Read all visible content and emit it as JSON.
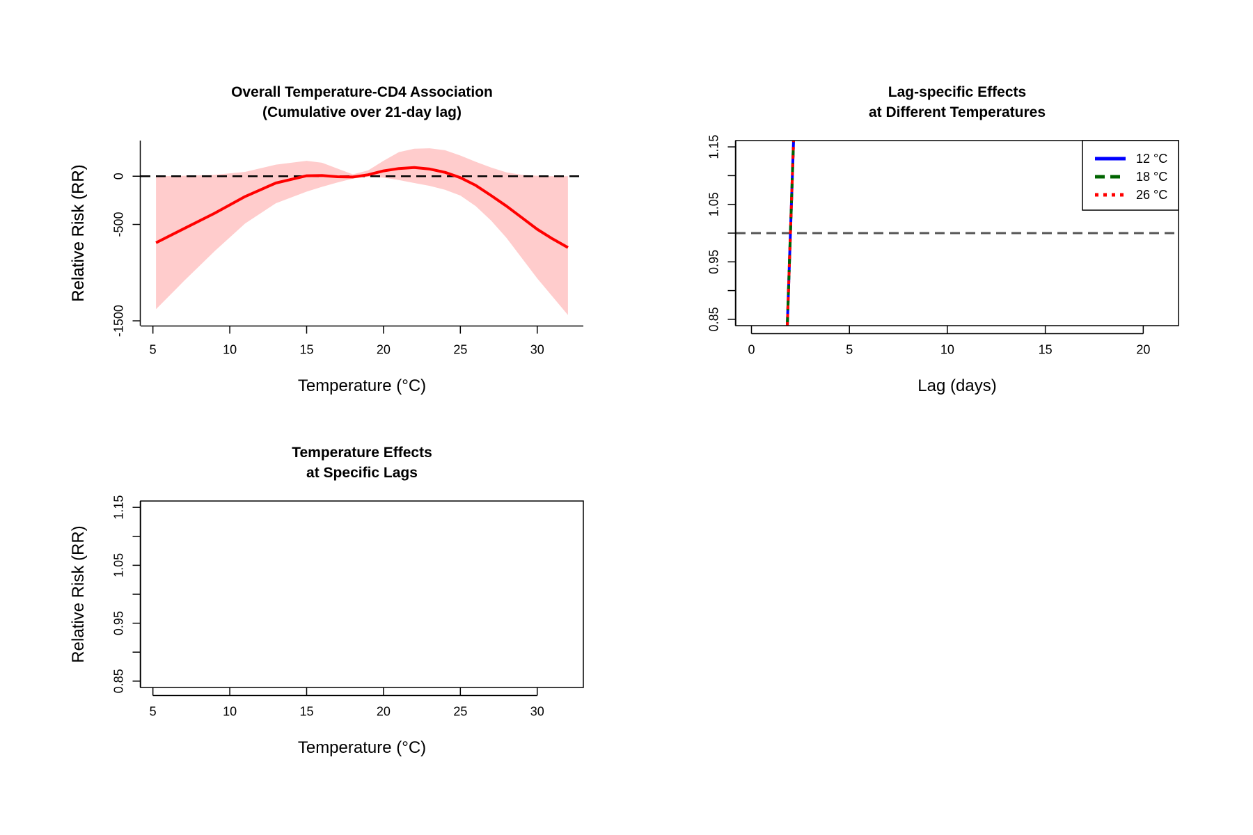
{
  "chart_data": [
    {
      "type": "line",
      "title": "Overall Temperature-CD4 Association",
      "subtitle": "(Cumulative over 21-day lag)",
      "xlabel": "Temperature (°C)",
      "ylabel": "Relative Risk (RR)",
      "xlim": [
        4.2,
        33.0
      ],
      "ylim": [
        -1550,
        370
      ],
      "x_ticks": [
        5,
        10,
        15,
        20,
        25,
        30
      ],
      "x_tick_labels": [
        "5",
        "10",
        "15",
        "20",
        "25",
        "30"
      ],
      "y_ticks": [
        -1500,
        -500,
        0
      ],
      "y_tick_labels": [
        "-1500",
        "-500",
        "0"
      ],
      "reference_line": {
        "y": 0,
        "style": "dashed"
      },
      "series": [
        {
          "x": [
            5.2,
            7,
            9,
            11,
            13,
            15,
            16,
            17,
            18,
            19,
            20,
            21,
            22,
            23,
            24,
            25,
            26,
            27,
            28,
            29,
            30,
            31,
            32
          ],
          "y": [
            -690,
            -545,
            -385,
            -210,
            -70,
            5,
            8,
            -5,
            -8,
            15,
            55,
            80,
            90,
            75,
            40,
            -15,
            -95,
            -200,
            -310,
            -430,
            -550,
            -650,
            -740
          ],
          "lower": [
            -1380,
            -1090,
            -780,
            -490,
            -280,
            -160,
            -110,
            -65,
            -25,
            -5,
            -15,
            -40,
            -70,
            -100,
            -140,
            -200,
            -310,
            -460,
            -640,
            -850,
            -1060,
            -1250,
            -1440
          ],
          "upper": [
            0,
            5,
            15,
            45,
            120,
            160,
            140,
            80,
            20,
            60,
            160,
            250,
            285,
            290,
            270,
            215,
            150,
            90,
            40,
            15,
            5,
            0,
            0
          ]
        }
      ],
      "colors": {
        "line": "#ff0000",
        "band": "#ffcccc",
        "reference": "#000000"
      }
    },
    {
      "type": "line",
      "title": "Lag-specific Effects",
      "subtitle": "at Different Temperatures",
      "xlabel": "Lag (days)",
      "ylabel": "Relative Risk (RR)",
      "xlim": [
        -0.8,
        21.8
      ],
      "ylim": [
        0.839,
        1.161
      ],
      "x_ticks": [
        0,
        5,
        10,
        15,
        20
      ],
      "x_tick_labels": [
        "0",
        "5",
        "10",
        "15",
        "20"
      ],
      "y_ticks": [
        0.85,
        0.9,
        0.95,
        1.0,
        1.05,
        1.1,
        1.15
      ],
      "y_tick_labels": [
        "0.85",
        "",
        "0.95",
        "",
        "1.05",
        "",
        "1.15"
      ],
      "reference_line": {
        "y": 1.0,
        "style": "dashed"
      },
      "legend": {
        "placement": "top-right",
        "entries": [
          "12 °C",
          "18 °C",
          "26 °C"
        ]
      },
      "series": [
        {
          "name": "12 °C",
          "x": [
            1.83,
            2.15
          ],
          "y": [
            0.839,
            1.161
          ],
          "color": "#0000ff",
          "style": "solid"
        },
        {
          "name": "18 °C",
          "x": [
            1.83,
            2.15
          ],
          "y": [
            0.839,
            1.161
          ],
          "color": "#006400",
          "style": "dashed"
        },
        {
          "name": "26 °C",
          "x": [
            1.83,
            2.15
          ],
          "y": [
            0.839,
            1.161
          ],
          "color": "#ff0000",
          "style": "dotted"
        }
      ],
      "colors": {
        "reference": "#555555"
      }
    },
    {
      "type": "line",
      "title": "Temperature Effects",
      "subtitle": "at Specific Lags",
      "xlabel": "Temperature (°C)",
      "ylabel": "Relative Risk (RR)",
      "xlim": [
        4.2,
        33.0
      ],
      "ylim": [
        0.839,
        1.161
      ],
      "x_ticks": [
        5,
        10,
        15,
        20,
        25,
        30
      ],
      "x_tick_labels": [
        "5",
        "10",
        "15",
        "20",
        "25",
        "30"
      ],
      "y_ticks": [
        0.85,
        0.9,
        0.95,
        1.0,
        1.05,
        1.1,
        1.15
      ],
      "y_tick_labels": [
        "0.85",
        "",
        "0.95",
        "",
        "1.05",
        "",
        "1.15"
      ],
      "series": []
    }
  ]
}
